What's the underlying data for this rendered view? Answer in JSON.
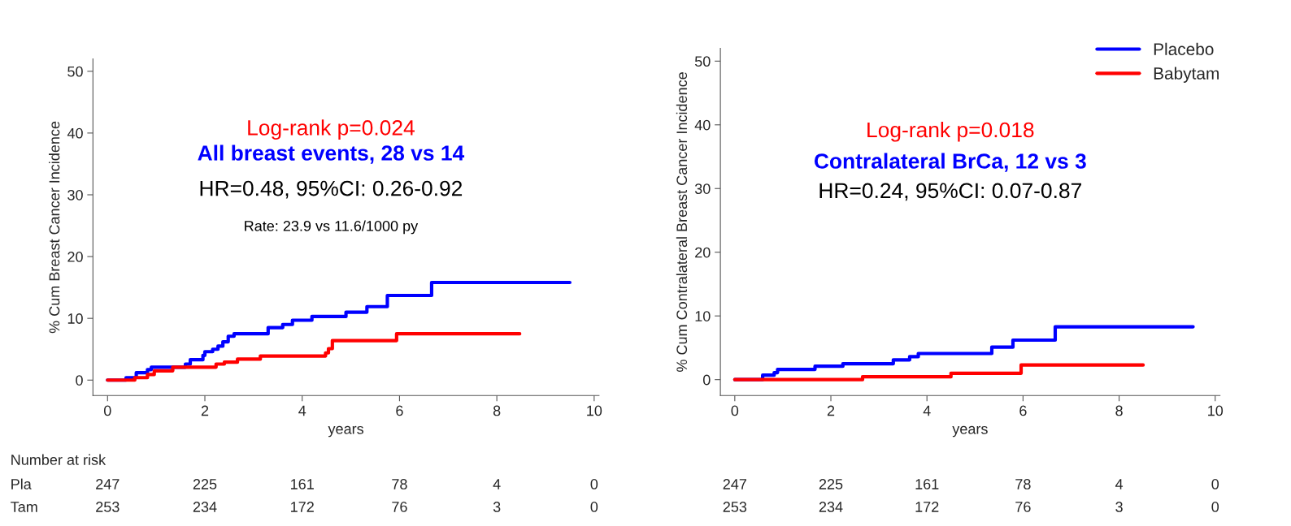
{
  "chart_data": [
    {
      "type": "step",
      "xlabel": "years",
      "ylabel": "% Cum Breast Cancer Incidence",
      "xlim": [
        -0.3,
        10.1
      ],
      "ylim": [
        -2.5,
        52
      ],
      "xticks": [
        0,
        2,
        4,
        6,
        8,
        10
      ],
      "yticks": [
        0,
        10,
        20,
        30,
        40,
        50
      ],
      "grid": false,
      "series": [
        {
          "color": "#0000ff",
          "x": [
            0,
            0.38,
            0.59,
            0.82,
            0.9,
            1.6,
            1.7,
            1.96,
            2.0,
            2.16,
            2.27,
            2.37,
            2.48,
            2.6,
            3.3,
            3.6,
            3.8,
            4.2,
            4.9,
            5.33,
            5.75,
            6.66,
            9.5
          ],
          "values": [
            0,
            0.4,
            1.2,
            1.7,
            2.1,
            2.6,
            3.3,
            4.0,
            4.6,
            5.0,
            5.5,
            6.2,
            7.1,
            7.5,
            8.5,
            9.0,
            9.7,
            10.3,
            11.0,
            11.9,
            13.7,
            15.8,
            15.8
          ]
        },
        {
          "color": "#ff0000",
          "x": [
            0,
            0.56,
            0.82,
            0.96,
            1.34,
            2.23,
            2.4,
            2.67,
            3.14,
            4.48,
            4.54,
            4.62,
            5.94,
            8.47
          ],
          "values": [
            0,
            0.4,
            0.9,
            1.5,
            2.1,
            2.6,
            2.9,
            3.4,
            3.9,
            4.4,
            5.1,
            6.4,
            7.5,
            7.5
          ]
        }
      ],
      "annotations": [
        "Log-rank p=0.024",
        "All breast events, 28 vs 14",
        "HR=0.48, 95%CI: 0.26-0.92",
        "Rate: 23.9 vs 11.6/1000 py",
        "Number at risk",
        "Pla",
        "247",
        "225",
        "161",
        "78",
        "4",
        "0",
        "Tam",
        "253",
        "234",
        "172",
        "76",
        "3",
        "0"
      ]
    },
    {
      "type": "step",
      "xlabel": "years",
      "ylabel": "% Cum Contralateral Breast Cancer Incidence",
      "xlim": [
        -0.3,
        10.1
      ],
      "ylim": [
        -2.5,
        52
      ],
      "xticks": [
        0,
        2,
        4,
        6,
        8,
        10
      ],
      "yticks": [
        0,
        10,
        20,
        30,
        40,
        50
      ],
      "grid": false,
      "legend": "top right",
      "series": [
        {
          "name": "Placebo",
          "color": "#0000ff",
          "x": [
            0,
            0.58,
            0.82,
            0.89,
            1.67,
            2.25,
            3.3,
            3.64,
            3.82,
            5.35,
            5.79,
            6.67,
            9.54
          ],
          "values": [
            0,
            0.7,
            1.1,
            1.6,
            2.1,
            2.5,
            3.1,
            3.6,
            4.1,
            5.1,
            6.2,
            8.3,
            8.3
          ]
        },
        {
          "name": "Babytam",
          "color": "#ff0000",
          "x": [
            0,
            2.66,
            4.5,
            5.96,
            8.5
          ],
          "values": [
            0,
            0.45,
            1.0,
            2.3,
            2.3
          ]
        }
      ],
      "annotations": [
        "Log-rank p=0.018",
        "Contralateral BrCa, 12 vs 3",
        "HR=0.24, 95%CI: 0.07-0.87",
        "247",
        "225",
        "161",
        "78",
        "4",
        "0",
        "253",
        "234",
        "172",
        "76",
        "3",
        "0"
      ]
    }
  ]
}
